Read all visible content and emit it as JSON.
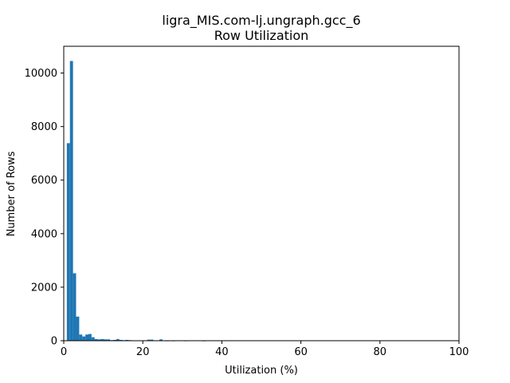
{
  "chart_data": {
    "type": "bar",
    "title": "ligra_MIS.com-lj.ungraph.gcc_6",
    "subtitle": "Row Utilization",
    "xlabel": "Utilization (%)",
    "ylabel": "Number of Rows",
    "xlim": [
      0,
      100
    ],
    "ylim": [
      0,
      11000
    ],
    "xticks": [
      "0",
      "20",
      "40",
      "60",
      "80",
      "100"
    ],
    "yticks": [
      "0",
      "2000",
      "4000",
      "6000",
      "8000",
      "10000"
    ],
    "grid": false,
    "bin_width": 0.78125,
    "bar_color": "#1f77b4",
    "bins": [
      {
        "x": 0.0,
        "y": 0
      },
      {
        "x": 0.78,
        "y": 7380
      },
      {
        "x": 1.56,
        "y": 10450
      },
      {
        "x": 2.34,
        "y": 2520
      },
      {
        "x": 3.13,
        "y": 900
      },
      {
        "x": 3.91,
        "y": 230
      },
      {
        "x": 4.69,
        "y": 160
      },
      {
        "x": 5.47,
        "y": 230
      },
      {
        "x": 6.25,
        "y": 250
      },
      {
        "x": 7.03,
        "y": 130
      },
      {
        "x": 7.81,
        "y": 60
      },
      {
        "x": 8.59,
        "y": 50
      },
      {
        "x": 9.38,
        "y": 60
      },
      {
        "x": 10.16,
        "y": 50
      },
      {
        "x": 10.94,
        "y": 50
      },
      {
        "x": 11.72,
        "y": 20
      },
      {
        "x": 12.5,
        "y": 30
      },
      {
        "x": 13.28,
        "y": 60
      },
      {
        "x": 14.06,
        "y": 30
      },
      {
        "x": 14.84,
        "y": 20
      },
      {
        "x": 15.63,
        "y": 30
      },
      {
        "x": 16.41,
        "y": 20
      },
      {
        "x": 17.19,
        "y": 10
      },
      {
        "x": 17.97,
        "y": 10
      },
      {
        "x": 18.75,
        "y": 10
      },
      {
        "x": 19.53,
        "y": 10
      },
      {
        "x": 20.31,
        "y": 10
      },
      {
        "x": 21.09,
        "y": 40
      },
      {
        "x": 21.88,
        "y": 40
      },
      {
        "x": 22.66,
        "y": 10
      },
      {
        "x": 23.44,
        "y": 10
      },
      {
        "x": 24.22,
        "y": 50
      },
      {
        "x": 25.0,
        "y": 10
      },
      {
        "x": 25.78,
        "y": 5
      },
      {
        "x": 27.34,
        "y": 5
      },
      {
        "x": 30.47,
        "y": 5
      },
      {
        "x": 35.16,
        "y": 3
      }
    ]
  }
}
